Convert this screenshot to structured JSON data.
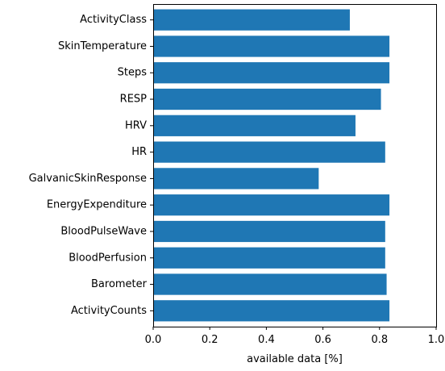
{
  "chart_data": {
    "type": "bar",
    "orientation": "horizontal",
    "categories": [
      "ActivityClass",
      "SkinTemperature",
      "Steps",
      "RESP",
      "HRV",
      "HR",
      "GalvanicSkinResponse",
      "EnergyExpenditure",
      "BloodPulseWave",
      "BloodPerfusion",
      "Barometer",
      "ActivityCounts"
    ],
    "values": [
      0.695,
      0.835,
      0.835,
      0.805,
      0.715,
      0.82,
      0.585,
      0.835,
      0.82,
      0.82,
      0.825,
      0.835
    ],
    "xlabel": "available data [%]",
    "ylabel": "",
    "xlim": [
      0.0,
      1.0
    ],
    "xticks": [
      "0.0",
      "0.2",
      "0.4",
      "0.6",
      "0.8",
      "1.0"
    ],
    "grid": false,
    "bar_color": "#1f77b4"
  }
}
